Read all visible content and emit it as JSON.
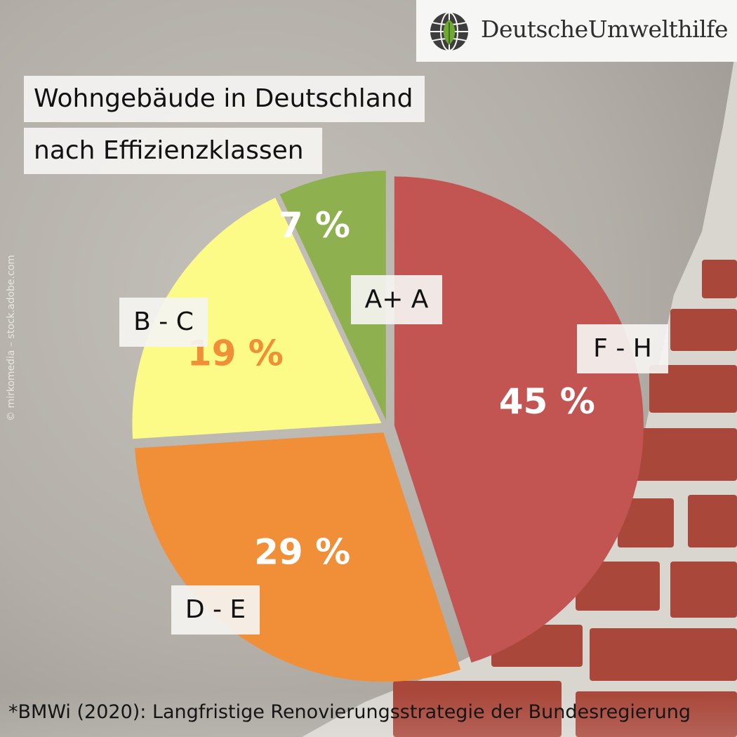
{
  "logo": {
    "text": "DeutscheUmwelthilfe"
  },
  "title_line1": "Wohngebäude in Deutschland",
  "title_line2": "nach Effizienzklassen",
  "credit": "© mirkomedia – stock.adobe.com",
  "footnote": "*BMWi (2020): Langfristige Renovierungsstrategie der Bundesregierung",
  "colors": {
    "F - H": "#c25452",
    "D - E": "#f08f37",
    "B - C": "#fdfb87",
    "A+ A": "#8fb04e"
  },
  "chart_data": {
    "type": "pie",
    "title": "Wohngebäude in Deutschland nach Effizienzklassen",
    "categories": [
      "F - H",
      "D - E",
      "B - C",
      "A+ A"
    ],
    "values": [
      45,
      29,
      19,
      7
    ],
    "value_labels": [
      "45 %",
      "29 %",
      "19 %",
      "7 %"
    ],
    "unit": "%"
  }
}
